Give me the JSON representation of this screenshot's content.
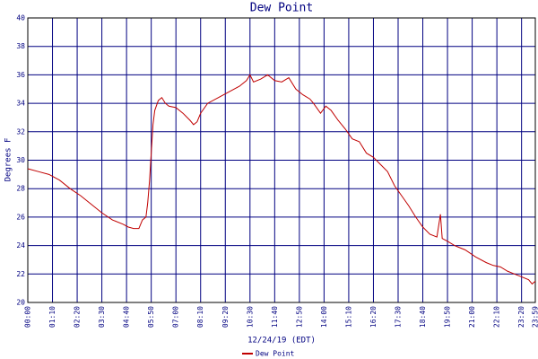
{
  "chart_data": {
    "type": "line",
    "title": "Dew Point",
    "x_label": "12/24/19 (EDT)",
    "y_label": "Degrees F",
    "xlim": [
      0,
      1439
    ],
    "ylim": [
      20,
      40
    ],
    "yticks": [
      20,
      22,
      24,
      26,
      28,
      30,
      32,
      34,
      36,
      38,
      40
    ],
    "xticks": [
      {
        "value": 0,
        "label": "00:00"
      },
      {
        "value": 70,
        "label": "01:10"
      },
      {
        "value": 140,
        "label": "02:20"
      },
      {
        "value": 210,
        "label": "03:30"
      },
      {
        "value": 280,
        "label": "04:40"
      },
      {
        "value": 350,
        "label": "05:50"
      },
      {
        "value": 420,
        "label": "07:00"
      },
      {
        "value": 490,
        "label": "08:10"
      },
      {
        "value": 560,
        "label": "09:20"
      },
      {
        "value": 630,
        "label": "10:30"
      },
      {
        "value": 700,
        "label": "11:40"
      },
      {
        "value": 770,
        "label": "12:50"
      },
      {
        "value": 840,
        "label": "14:00"
      },
      {
        "value": 910,
        "label": "15:10"
      },
      {
        "value": 980,
        "label": "16:20"
      },
      {
        "value": 1050,
        "label": "17:30"
      },
      {
        "value": 1120,
        "label": "18:40"
      },
      {
        "value": 1190,
        "label": "19:50"
      },
      {
        "value": 1260,
        "label": "21:00"
      },
      {
        "value": 1330,
        "label": "22:10"
      },
      {
        "value": 1400,
        "label": "23:20"
      },
      {
        "value": 1439,
        "label": "23:59"
      }
    ],
    "grid": true,
    "series": [
      {
        "name": "Dew Point",
        "color": "#c00000",
        "x": [
          0,
          30,
          60,
          90,
          120,
          150,
          180,
          210,
          240,
          270,
          285,
          300,
          315,
          325,
          335,
          340,
          345,
          350,
          355,
          360,
          370,
          380,
          390,
          400,
          420,
          440,
          460,
          470,
          480,
          490,
          510,
          540,
          570,
          600,
          620,
          630,
          640,
          660,
          680,
          700,
          720,
          740,
          760,
          780,
          800,
          810,
          830,
          845,
          860,
          880,
          900,
          920,
          940,
          960,
          980,
          1000,
          1020,
          1040,
          1060,
          1080,
          1100,
          1120,
          1140,
          1160,
          1170,
          1175,
          1190,
          1210,
          1240,
          1270,
          1300,
          1320,
          1340,
          1360,
          1380,
          1400,
          1420,
          1430,
          1439
        ],
        "values": [
          29.4,
          29.2,
          29.0,
          28.6,
          28.0,
          27.5,
          26.9,
          26.3,
          25.8,
          25.5,
          25.3,
          25.2,
          25.2,
          25.8,
          26.0,
          27,
          28.5,
          30.5,
          32.5,
          33.5,
          34.2,
          34.4,
          34.0,
          33.8,
          33.7,
          33.3,
          32.8,
          32.5,
          32.7,
          33.3,
          34.0,
          34.4,
          34.8,
          35.2,
          35.6,
          36.0,
          35.5,
          35.7,
          36.0,
          35.6,
          35.5,
          35.8,
          35.0,
          34.6,
          34.3,
          34.0,
          33.3,
          33.8,
          33.5,
          32.8,
          32.2,
          31.5,
          31.3,
          30.5,
          30.2,
          29.7,
          29.2,
          28.2,
          27.5,
          26.8,
          26.0,
          25.3,
          24.8,
          24.6,
          26.2,
          24.5,
          24.3,
          24.0,
          23.7,
          23.2,
          22.8,
          22.6,
          22.5,
          22.2,
          22.0,
          21.8,
          21.6,
          21.3,
          21.5
        ]
      }
    ]
  }
}
